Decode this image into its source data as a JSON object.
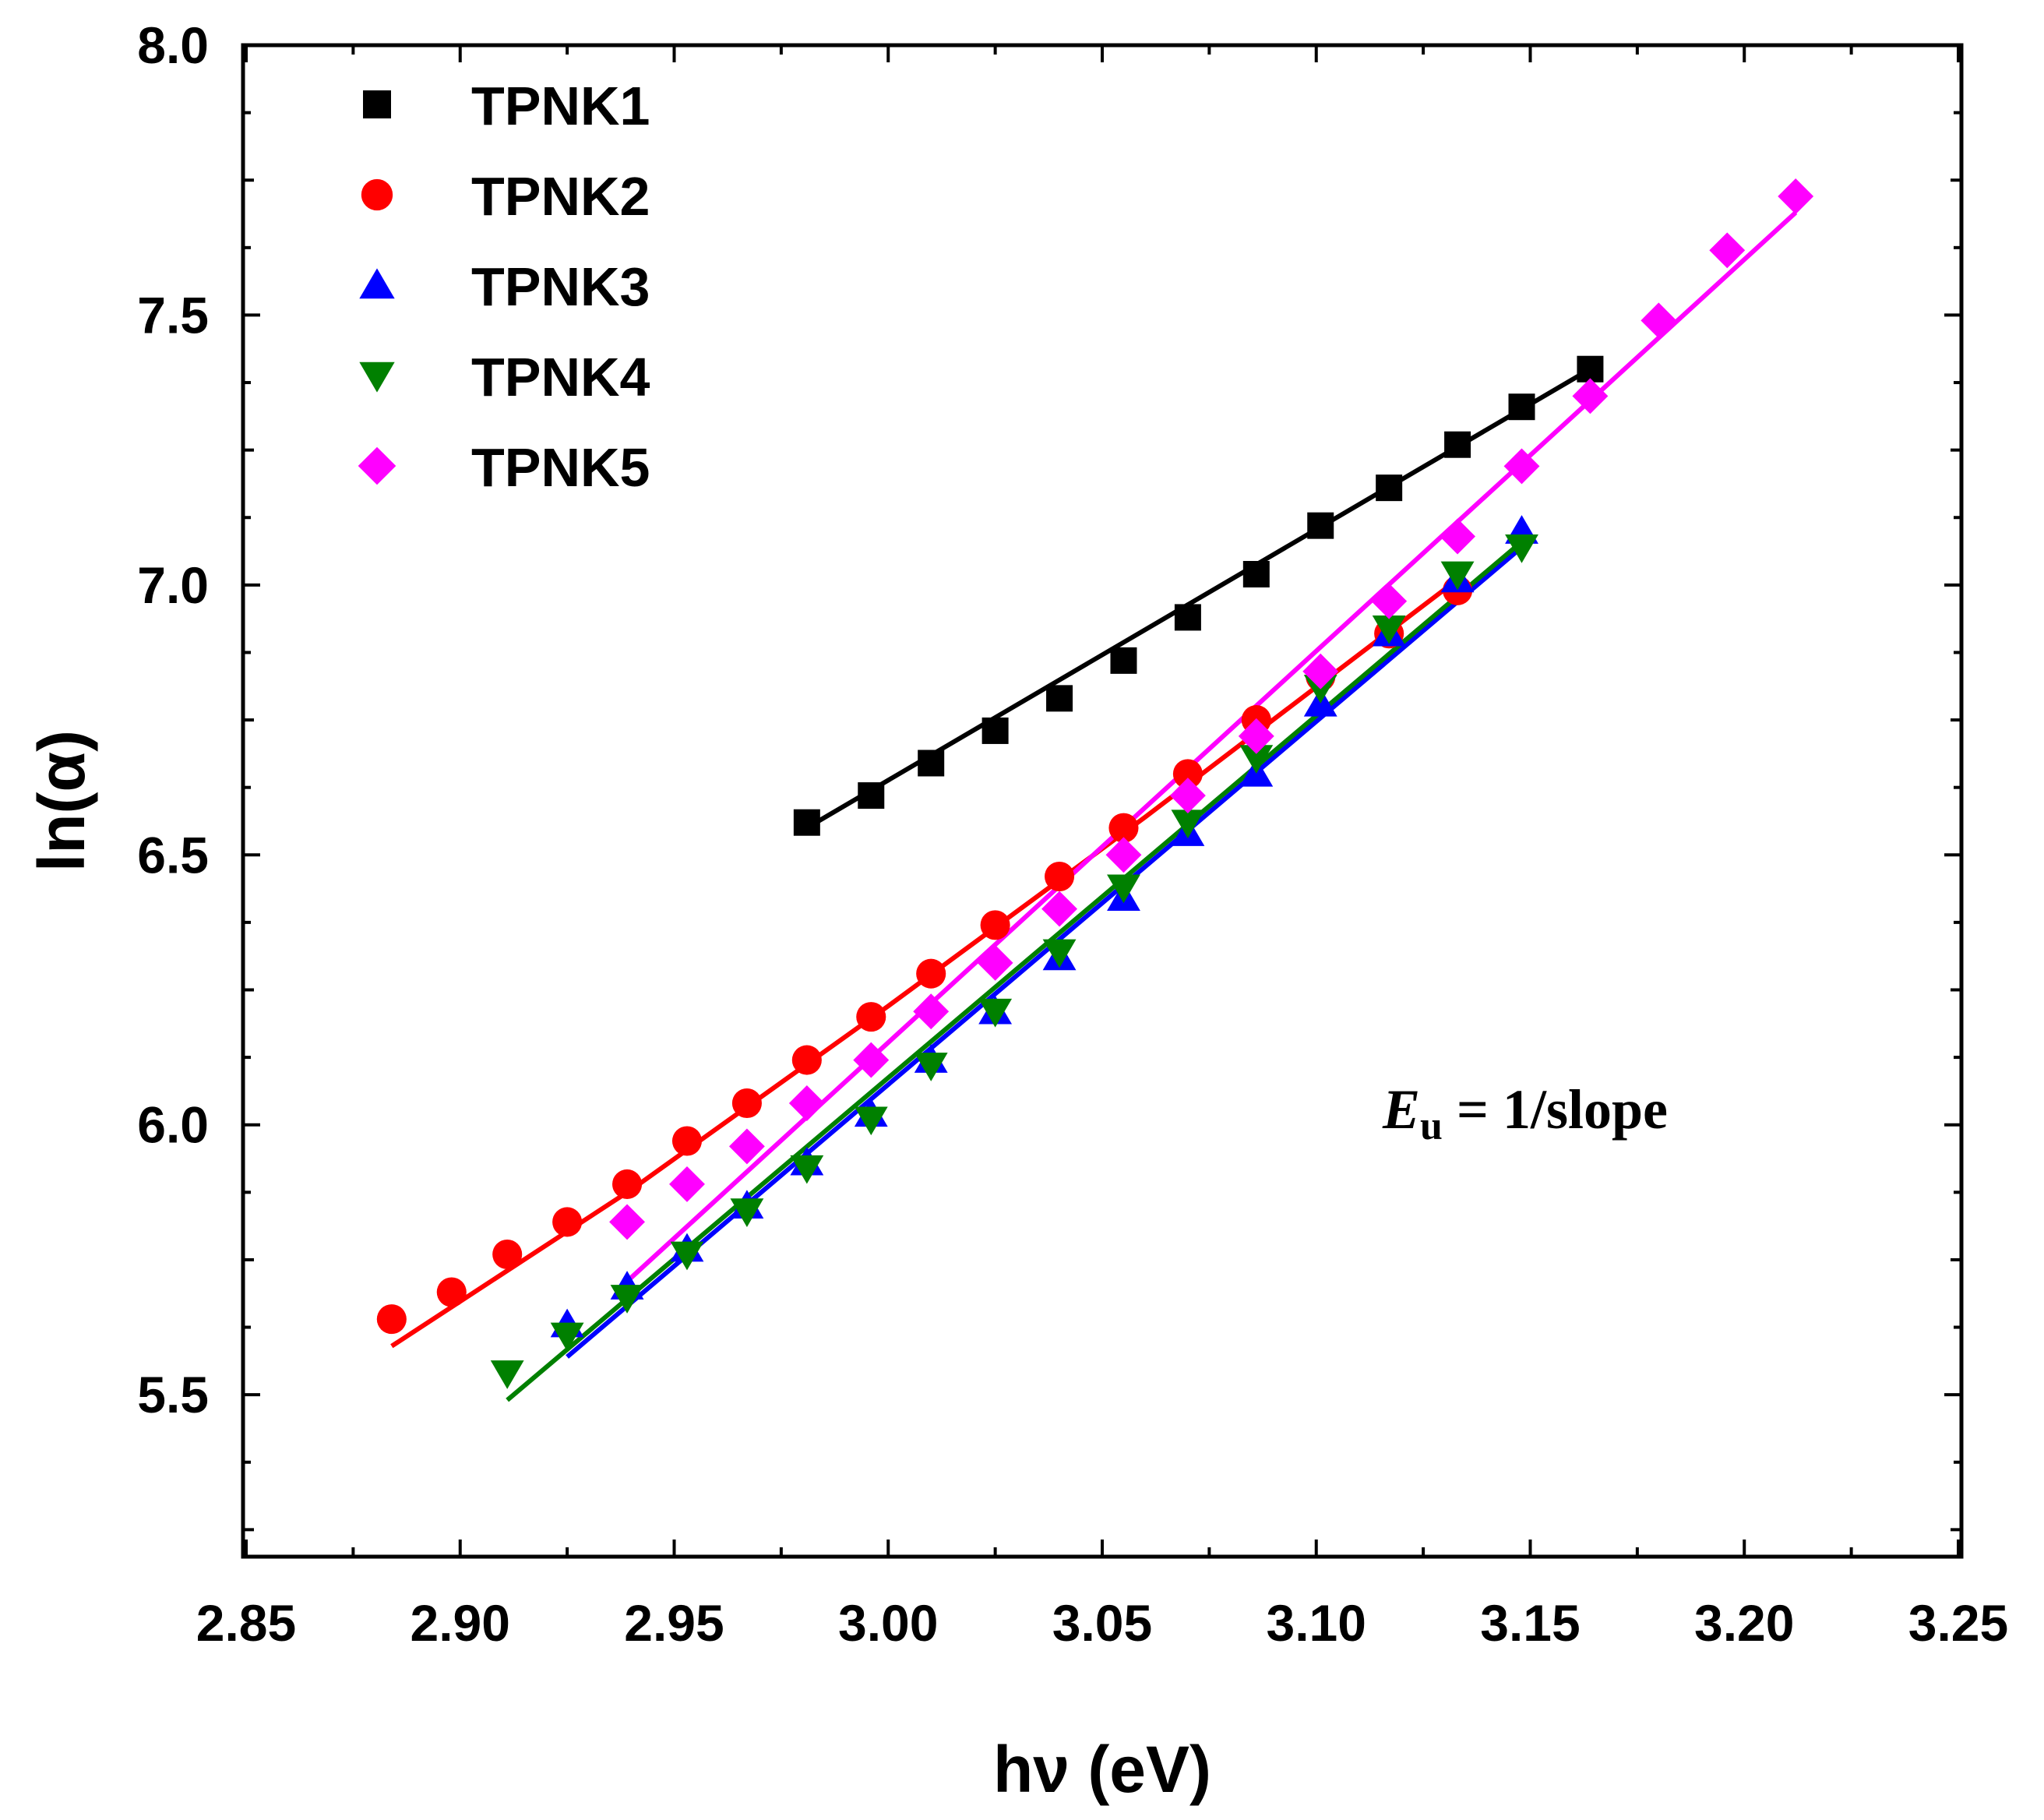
{
  "chart_data": {
    "type": "scatter",
    "title": "",
    "xlabel": "hν (eV)",
    "ylabel": "ln(α)",
    "xlim": [
      2.85,
      3.25
    ],
    "ylim": [
      5.2,
      8.0
    ],
    "xticks": [
      "2.85",
      "2.90",
      "2.95",
      "3.00",
      "3.05",
      "3.10",
      "3.15",
      "3.20",
      "3.25"
    ],
    "yticks": [
      "5.5",
      "6.0",
      "6.5",
      "7.0",
      "7.5",
      "8.0"
    ],
    "legend_position": "top-left",
    "annotation": {
      "symbol": "E",
      "subscript": "u",
      "text": " = 1/slope"
    },
    "series": [
      {
        "name": "TPNK1",
        "marker": "square",
        "color": "#000000",
        "x": [
          2.981,
          2.996,
          3.01,
          3.025,
          3.04,
          3.055,
          3.07,
          3.086,
          3.101,
          3.117,
          3.133,
          3.148,
          3.164
        ],
        "y": [
          6.56,
          6.61,
          6.67,
          6.73,
          6.79,
          6.86,
          6.94,
          7.02,
          7.11,
          7.18,
          7.26,
          7.33,
          7.4
        ],
        "fit": [
          [
            2.981,
            6.55
          ],
          [
            3.164,
            7.4
          ]
        ]
      },
      {
        "name": "TPNK2",
        "marker": "circle",
        "color": "#ff0000",
        "x": [
          2.884,
          2.898,
          2.911,
          2.925,
          2.939,
          2.953,
          2.967,
          2.981,
          2.996,
          3.01,
          3.025,
          3.04,
          3.055,
          3.07,
          3.086,
          3.101,
          3.117,
          3.133
        ],
        "y": [
          5.64,
          5.69,
          5.76,
          5.82,
          5.89,
          5.97,
          6.04,
          6.12,
          6.2,
          6.28,
          6.37,
          6.46,
          6.55,
          6.65,
          6.75,
          6.83,
          6.91,
          6.99
        ],
        "fit": [
          [
            2.884,
            5.59
          ],
          [
            2.94,
            5.88
          ],
          [
            3.0,
            6.22
          ],
          [
            3.06,
            6.57
          ],
          [
            3.133,
            7.01
          ]
        ]
      },
      {
        "name": "TPNK3",
        "marker": "triangle-up",
        "color": "#0000ff",
        "x": [
          2.925,
          2.939,
          2.953,
          2.967,
          2.981,
          2.996,
          3.01,
          3.025,
          3.04,
          3.055,
          3.07,
          3.086,
          3.101,
          3.117,
          3.133,
          3.148
        ],
        "y": [
          5.63,
          5.7,
          5.77,
          5.85,
          5.93,
          6.02,
          6.12,
          6.21,
          6.31,
          6.42,
          6.54,
          6.65,
          6.78,
          6.91,
          7.01,
          7.1
        ],
        "fit": [
          [
            2.925,
            5.57
          ],
          [
            3.148,
            7.07
          ]
        ]
      },
      {
        "name": "TPNK4",
        "marker": "triangle-down",
        "color": "#008000",
        "x": [
          2.911,
          2.925,
          2.939,
          2.953,
          2.967,
          2.981,
          2.996,
          3.01,
          3.025,
          3.04,
          3.055,
          3.07,
          3.086,
          3.101,
          3.117,
          3.133,
          3.148
        ],
        "y": [
          5.54,
          5.61,
          5.68,
          5.76,
          5.84,
          5.92,
          6.01,
          6.11,
          6.21,
          6.32,
          6.44,
          6.56,
          6.68,
          6.81,
          6.92,
          7.02,
          7.07
        ],
        "fit": [
          [
            2.911,
            5.49
          ],
          [
            3.148,
            7.08
          ]
        ]
      },
      {
        "name": "TPNK5",
        "marker": "diamond",
        "color": "#ff00ff",
        "x": [
          2.939,
          2.953,
          2.967,
          2.981,
          2.996,
          3.01,
          3.025,
          3.04,
          3.055,
          3.07,
          3.086,
          3.101,
          3.117,
          3.133,
          3.148,
          3.164,
          3.18,
          3.196,
          3.212
        ],
        "y": [
          5.82,
          5.89,
          5.96,
          6.04,
          6.12,
          6.21,
          6.3,
          6.4,
          6.5,
          6.61,
          6.72,
          6.84,
          6.97,
          7.09,
          7.22,
          7.35,
          7.49,
          7.62,
          7.72
        ],
        "fit": [
          [
            2.939,
            5.71
          ],
          [
            3.212,
            7.69
          ]
        ]
      }
    ]
  }
}
